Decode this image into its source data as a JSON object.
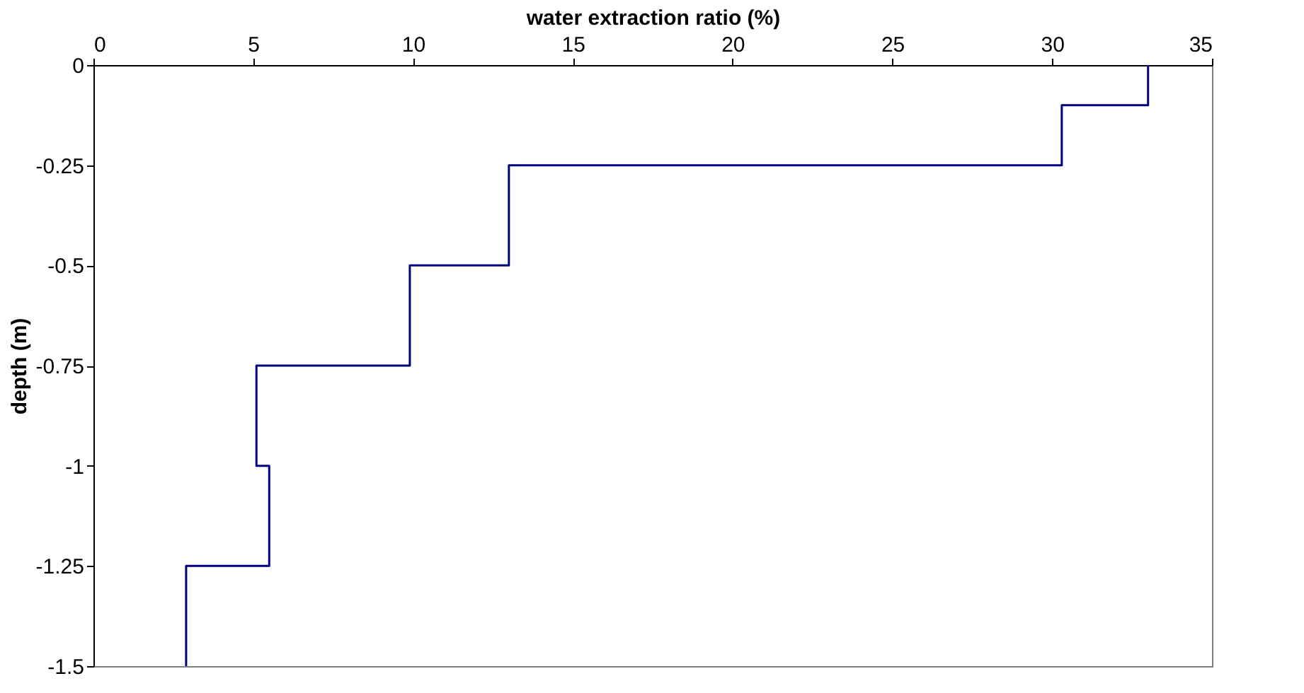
{
  "chart_data": {
    "type": "line",
    "xlabel": "water extraction ratio (%)",
    "ylabel": "depth (m)",
    "series": [
      {
        "color": "#000080",
        "x": [
          33,
          33,
          30.3,
          30.3,
          13,
          13,
          9.9,
          9.9,
          5.1,
          5.1,
          5.5,
          5.5,
          2.9,
          2.9
        ],
        "values": [
          0,
          -0.1,
          -0.1,
          -0.25,
          -0.25,
          -0.5,
          -0.5,
          -0.75,
          -0.75,
          -1,
          -1,
          -1.25,
          -1.25,
          -1.5
        ]
      }
    ],
    "xlim": [
      0,
      35
    ],
    "xticks": [
      0,
      5,
      10,
      15,
      20,
      25,
      30,
      35
    ],
    "ylim": [
      -1.5,
      0
    ],
    "yticks": [
      0,
      -0.25,
      -0.5,
      -0.75,
      -1,
      -1.25,
      -1.5
    ],
    "grid": false,
    "legend": false,
    "marker": "none",
    "line_style": "solid"
  }
}
